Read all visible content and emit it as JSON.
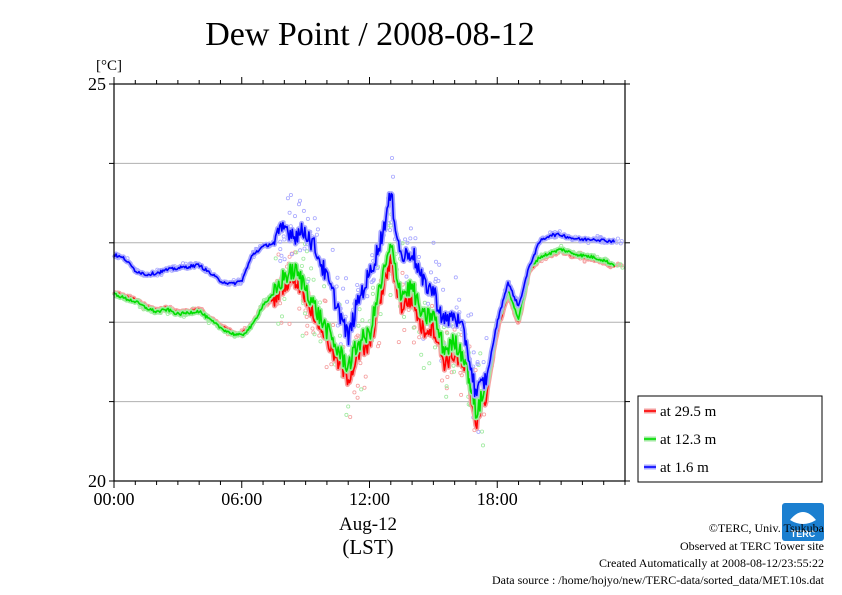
{
  "chart_data": {
    "type": "line",
    "title": "Dew Point / 2008-08-12",
    "ylabel": "[°C]",
    "xlabel": "Aug-12",
    "xlabel2": "(LST)",
    "ylim": [
      20,
      25
    ],
    "xlim": [
      0,
      24
    ],
    "yticks": [
      20,
      21,
      22,
      23,
      24,
      25
    ],
    "ytick_labels": [
      "20",
      "",
      "",
      "",
      "",
      "25"
    ],
    "xticks": [
      0,
      6,
      12,
      18
    ],
    "xtick_labels": [
      "00:00",
      "06:00",
      "12:00",
      "18:00"
    ],
    "grid": true,
    "legend_position": "right-bottom",
    "series": [
      {
        "name": "at 29.5 m",
        "color": "#ff0000",
        "x": [
          0,
          0.5,
          1,
          1.5,
          2,
          2.5,
          3,
          3.5,
          4,
          4.5,
          5,
          5.5,
          6,
          6.5,
          7,
          7.5,
          8,
          8.5,
          9,
          9.5,
          10,
          10.5,
          11,
          11.5,
          12,
          12.5,
          13,
          13.5,
          14,
          14.5,
          15,
          15.5,
          16,
          16.5,
          17,
          17.5,
          18,
          18.5,
          19,
          19.5,
          20,
          20.5,
          21,
          21.5,
          22,
          22.5,
          23,
          23.5
        ],
        "y": [
          22.38,
          22.32,
          22.28,
          22.2,
          22.15,
          22.18,
          22.12,
          22.14,
          22.16,
          22.05,
          21.95,
          21.88,
          21.85,
          21.98,
          22.2,
          22.3,
          22.5,
          22.55,
          22.35,
          22.05,
          21.8,
          21.5,
          21.3,
          21.6,
          21.7,
          22.3,
          22.8,
          22.2,
          22.3,
          21.9,
          21.95,
          21.5,
          21.6,
          21.4,
          20.75,
          21.1,
          21.9,
          22.35,
          22.0,
          22.65,
          22.8,
          22.85,
          22.9,
          22.85,
          22.82,
          22.8,
          22.76,
          22.7
        ]
      },
      {
        "name": "at 12.3 m",
        "color": "#00dd00",
        "x": [
          0,
          0.5,
          1,
          1.5,
          2,
          2.5,
          3,
          3.5,
          4,
          4.5,
          5,
          5.5,
          6,
          6.5,
          7,
          7.5,
          8,
          8.5,
          9,
          9.5,
          10,
          10.5,
          11,
          11.5,
          12,
          12.5,
          13,
          13.5,
          14,
          14.5,
          15,
          15.5,
          16,
          16.5,
          17,
          17.5,
          18,
          18.5,
          19,
          19.5,
          20,
          20.5,
          21,
          21.5,
          22,
          22.5,
          23,
          23.5
        ],
        "y": [
          22.36,
          22.3,
          22.26,
          22.18,
          22.13,
          22.16,
          22.1,
          22.12,
          22.14,
          22.03,
          21.93,
          21.86,
          21.83,
          21.96,
          22.22,
          22.35,
          22.58,
          22.65,
          22.45,
          22.15,
          21.9,
          21.65,
          21.45,
          21.75,
          21.85,
          22.45,
          22.95,
          22.35,
          22.45,
          22.05,
          22.1,
          21.65,
          21.75,
          21.55,
          20.85,
          21.2,
          22.0,
          22.4,
          22.05,
          22.68,
          22.82,
          22.87,
          22.92,
          22.87,
          22.84,
          22.82,
          22.78,
          22.72
        ]
      },
      {
        "name": "at 1.6 m",
        "color": "#0000ff",
        "x": [
          0,
          0.5,
          1,
          1.5,
          2,
          2.5,
          3,
          3.5,
          4,
          4.5,
          5,
          5.5,
          6,
          6.5,
          7,
          7.5,
          8,
          8.5,
          9,
          9.5,
          10,
          10.5,
          11,
          11.5,
          12,
          12.5,
          13,
          13.5,
          14,
          14.5,
          15,
          15.5,
          16,
          16.5,
          17,
          17.5,
          18,
          18.5,
          19,
          19.5,
          20,
          20.5,
          21,
          21.5,
          22,
          22.5,
          23,
          23.5
        ],
        "y": [
          22.85,
          22.8,
          22.65,
          22.6,
          22.62,
          22.66,
          22.68,
          22.7,
          22.72,
          22.62,
          22.52,
          22.48,
          22.52,
          22.85,
          22.95,
          23.0,
          23.2,
          23.1,
          23.15,
          22.9,
          22.55,
          22.2,
          21.8,
          22.3,
          22.6,
          23.0,
          23.6,
          22.8,
          22.9,
          22.5,
          22.4,
          22.0,
          22.1,
          21.8,
          21.1,
          21.3,
          22.0,
          22.5,
          22.2,
          22.7,
          23.02,
          23.1,
          23.1,
          23.06,
          23.04,
          23.05,
          23.03,
          23.02
        ]
      }
    ]
  },
  "footer": {
    "copyright": "©TERC, Univ. Tsukuba",
    "observed": "Observed at TERC Tower site",
    "created": "Created Automatically at 2008-08-12/23:55:22",
    "source": "Data source : /home/hojyo/new/TERC-data/sorted_data/MET.10s.dat"
  },
  "logo": {
    "text": "TERC"
  }
}
